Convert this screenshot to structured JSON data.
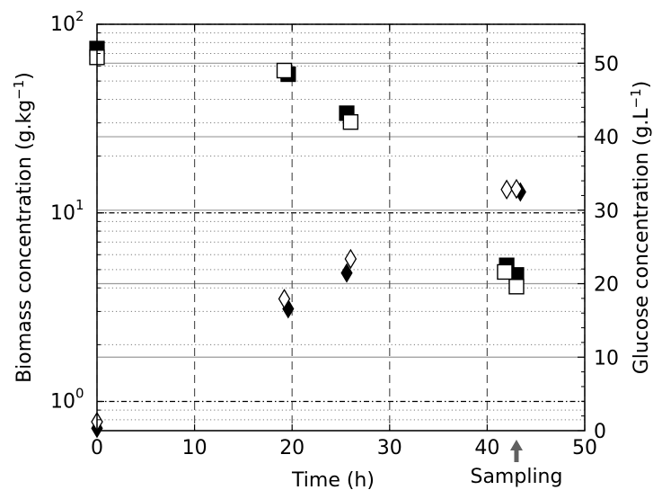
{
  "chart_data": {
    "type": "scatter",
    "xlabel": "Time (h)",
    "ylabel": "Biomass concentration (g.kg",
    "ylabel_sup": "−1",
    "ylabel_close": ")",
    "ylabel2": "Glucose concentration (g.L",
    "ylabel2_sup": "−1",
    "ylabel2_close": ")",
    "xlim": [
      0,
      50
    ],
    "ylim": [
      0.7,
      100
    ],
    "yscale": "log",
    "y2lim": [
      0,
      55.3
    ],
    "xticks": [
      "0",
      "10",
      "20",
      "30",
      "40",
      "50"
    ],
    "yticks": [
      {
        "base": "10",
        "exp": "0",
        "value": 1
      },
      {
        "base": "10",
        "exp": "1",
        "value": 10
      },
      {
        "base": "10",
        "exp": "2",
        "value": 100
      }
    ],
    "y2ticks": [
      "0",
      "10",
      "20",
      "30",
      "40",
      "50"
    ],
    "grid": "x dashed; y major dash-dot, minor dotted; right-axis solid lines",
    "annotation": {
      "text": "Sampling",
      "x": 43
    },
    "series": [
      {
        "marker": "square-filled",
        "axis": "right",
        "points": [
          {
            "x": 0,
            "y": 52.0
          },
          {
            "x": 19.6,
            "y": 48.5
          },
          {
            "x": 25.6,
            "y": 43.2
          },
          {
            "x": 42,
            "y": 22.5
          },
          {
            "x": 43,
            "y": 21.2
          }
        ]
      },
      {
        "marker": "square-open",
        "axis": "right",
        "points": [
          {
            "x": 0,
            "y": 50.8
          },
          {
            "x": 19.2,
            "y": 49.0
          },
          {
            "x": 26.0,
            "y": 42.0
          },
          {
            "x": 41.8,
            "y": 21.6
          },
          {
            "x": 43.0,
            "y": 19.6
          }
        ]
      },
      {
        "marker": "diamond-filled",
        "axis": "left",
        "points": [
          {
            "x": 0,
            "y": 0.72
          },
          {
            "x": 19.6,
            "y": 3.1
          },
          {
            "x": 25.6,
            "y": 4.8
          },
          {
            "x": 43.4,
            "y": 12.9
          }
        ]
      },
      {
        "marker": "diamond-open",
        "axis": "left",
        "points": [
          {
            "x": 0,
            "y": 0.78
          },
          {
            "x": 19.2,
            "y": 3.5
          },
          {
            "x": 26.0,
            "y": 5.7
          },
          {
            "x": 42.0,
            "y": 13.3
          },
          {
            "x": 43.0,
            "y": 13.4
          }
        ]
      }
    ]
  }
}
